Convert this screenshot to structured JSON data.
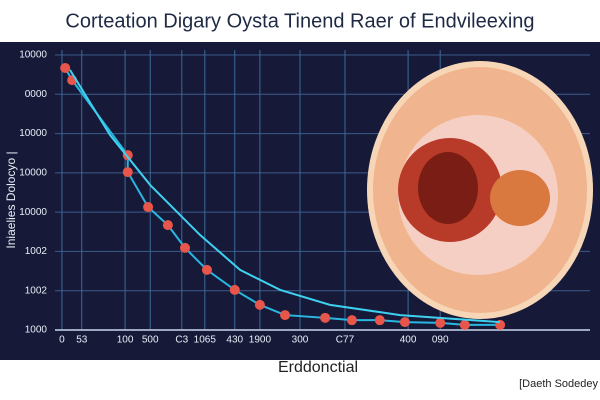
{
  "chart_data": {
    "type": "line",
    "title": "Corteation Digary Oysta Tinend Raer of Endvileexing",
    "x_label": "Erddonctial",
    "y_label": "Iniaelies Dolocyo |",
    "footnote": "[Daeth Sodedey",
    "xlim": [
      0,
      100
    ],
    "ylim": [
      0,
      7
    ],
    "xticks": [
      {
        "value": 1.3,
        "label": "0"
      },
      {
        "value": 5.0,
        "label": "53"
      },
      {
        "value": 13.1,
        "label": "100"
      },
      {
        "value": 17.8,
        "label": "500"
      },
      {
        "value": 23.7,
        "label": "C3"
      },
      {
        "value": 28.0,
        "label": "1065"
      },
      {
        "value": 33.6,
        "label": "430"
      },
      {
        "value": 38.3,
        "label": "1900"
      },
      {
        "value": 45.8,
        "label": "300"
      },
      {
        "value": 54.2,
        "label": "C77"
      },
      {
        "value": 66.0,
        "label": "400"
      },
      {
        "value": 72.0,
        "label": "090"
      }
    ],
    "yticks": [
      {
        "value": 7,
        "label": "10000"
      },
      {
        "value": 6,
        "label": "0000"
      },
      {
        "value": 5,
        "label": "10000"
      },
      {
        "value": 4,
        "label": "10000"
      },
      {
        "value": 3,
        "label": "10000"
      },
      {
        "value": 2,
        "label": "1002"
      },
      {
        "value": 1,
        "label": "1002"
      },
      {
        "value": 0,
        "label": "1000"
      }
    ],
    "grid": true,
    "series": [
      {
        "color": "#29b6e0",
        "marker_color": "#e8554a",
        "markers": true,
        "x": [
          1.9,
          3.2,
          13.6,
          13.6,
          17.4,
          21.1,
          24.3,
          28.4,
          33.6,
          38.3,
          43.0,
          50.5,
          55.5,
          60.7,
          65.4,
          72.0,
          76.6,
          83.2
        ],
        "values": [
          6.67,
          6.36,
          4.45,
          4.02,
          3.13,
          2.67,
          2.09,
          1.53,
          1.02,
          0.64,
          0.38,
          0.31,
          0.25,
          0.25,
          0.2,
          0.18,
          0.13,
          0.13
        ]
      },
      {
        "color": "#3fd0f0",
        "markers": false,
        "x": [
          2.8,
          10.3,
          17.8,
          27.1,
          34.6,
          42.1,
          51.4,
          64.5,
          83.2
        ],
        "values": [
          6.62,
          4.96,
          3.69,
          2.42,
          1.53,
          1.02,
          0.64,
          0.38,
          0.2
        ]
      }
    ]
  }
}
